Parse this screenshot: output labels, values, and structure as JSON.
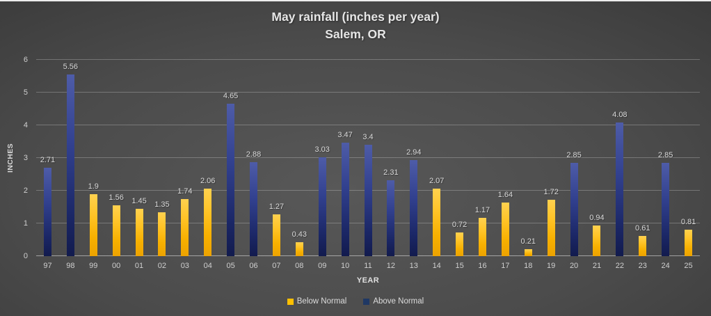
{
  "title": {
    "line1": "May rainfall (inches per year)",
    "line2": "Salem, OR"
  },
  "axes": {
    "y_title": "INCHES",
    "x_title": "YEAR",
    "y_ticks": [
      "0",
      "1",
      "2",
      "3",
      "4",
      "5",
      "6"
    ],
    "y_max": 6
  },
  "legend": [
    {
      "label": "Below Normal",
      "color": "#FFC000"
    },
    {
      "label": "Above Normal",
      "color": "#1F3864"
    }
  ],
  "colors": {
    "background_dark": "#262626",
    "background_light": "#585858",
    "below_normal_top": "#FFD14F",
    "below_normal_bottom": "#EDA300",
    "above_normal_top": "#4E5CA8",
    "above_normal_bottom": "#121B4E",
    "text": "#E6E6E6",
    "gridline": "#7A7A7A"
  },
  "chart_data": {
    "type": "bar",
    "title": "May rainfall (inches per year) Salem, OR",
    "xlabel": "YEAR",
    "ylabel": "INCHES",
    "ylim": [
      0,
      6
    ],
    "grid": true,
    "legend_position": "bottom",
    "categories": [
      "97",
      "98",
      "99",
      "00",
      "01",
      "02",
      "03",
      "04",
      "05",
      "06",
      "07",
      "08",
      "09",
      "10",
      "11",
      "12",
      "13",
      "14",
      "15",
      "16",
      "17",
      "18",
      "19",
      "20",
      "21",
      "22",
      "23",
      "24",
      "25"
    ],
    "series_names": [
      "Below Normal",
      "Above Normal"
    ],
    "points": [
      {
        "year": "97",
        "value": 2.71,
        "label": "2.71",
        "series": "Above Normal"
      },
      {
        "year": "98",
        "value": 5.56,
        "label": "5.56",
        "series": "Above Normal"
      },
      {
        "year": "99",
        "value": 1.9,
        "label": "1.9",
        "series": "Below Normal"
      },
      {
        "year": "00",
        "value": 1.56,
        "label": "1.56",
        "series": "Below Normal"
      },
      {
        "year": "01",
        "value": 1.45,
        "label": "1.45",
        "series": "Below Normal"
      },
      {
        "year": "02",
        "value": 1.35,
        "label": "1.35",
        "series": "Below Normal"
      },
      {
        "year": "03",
        "value": 1.74,
        "label": "1.74",
        "series": "Below Normal"
      },
      {
        "year": "04",
        "value": 2.06,
        "label": "2.06",
        "series": "Below Normal"
      },
      {
        "year": "05",
        "value": 4.65,
        "label": "4.65",
        "series": "Above Normal"
      },
      {
        "year": "06",
        "value": 2.88,
        "label": "2.88",
        "series": "Above Normal"
      },
      {
        "year": "07",
        "value": 1.27,
        "label": "1.27",
        "series": "Below Normal"
      },
      {
        "year": "08",
        "value": 0.43,
        "label": "0.43",
        "series": "Below Normal"
      },
      {
        "year": "09",
        "value": 3.03,
        "label": "3.03",
        "series": "Above Normal"
      },
      {
        "year": "10",
        "value": 3.47,
        "label": "3.47",
        "series": "Above Normal"
      },
      {
        "year": "11",
        "value": 3.4,
        "label": "3.4",
        "series": "Above Normal"
      },
      {
        "year": "12",
        "value": 2.31,
        "label": "2.31",
        "series": "Above Normal"
      },
      {
        "year": "13",
        "value": 2.94,
        "label": "2.94",
        "series": "Above Normal"
      },
      {
        "year": "14",
        "value": 2.07,
        "label": "2.07",
        "series": "Below Normal"
      },
      {
        "year": "15",
        "value": 0.72,
        "label": "0.72",
        "series": "Below Normal"
      },
      {
        "year": "16",
        "value": 1.17,
        "label": "1.17",
        "series": "Below Normal"
      },
      {
        "year": "17",
        "value": 1.64,
        "label": "1.64",
        "series": "Below Normal"
      },
      {
        "year": "18",
        "value": 0.21,
        "label": "0.21",
        "series": "Below Normal"
      },
      {
        "year": "19",
        "value": 1.72,
        "label": "1.72",
        "series": "Below Normal"
      },
      {
        "year": "20",
        "value": 2.85,
        "label": "2.85",
        "series": "Above Normal"
      },
      {
        "year": "21",
        "value": 0.94,
        "label": "0.94",
        "series": "Below Normal"
      },
      {
        "year": "22",
        "value": 4.08,
        "label": "4.08",
        "series": "Above Normal"
      },
      {
        "year": "23",
        "value": 0.61,
        "label": "0.61",
        "series": "Below Normal"
      },
      {
        "year": "24",
        "value": 2.85,
        "label": "2.85",
        "series": "Above Normal"
      },
      {
        "year": "25",
        "value": 0.81,
        "label": "0.81",
        "series": "Below Normal"
      }
    ]
  }
}
